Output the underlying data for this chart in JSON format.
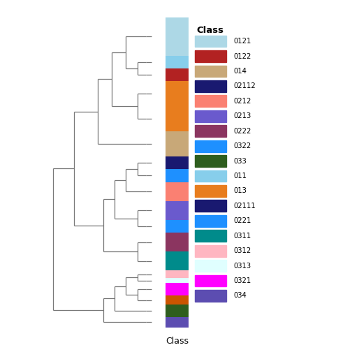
{
  "bar_segments": [
    {
      "color": "#ADD8E6",
      "size": 3.0
    },
    {
      "color": "#87CEEB",
      "size": 1.0
    },
    {
      "color": "#B22222",
      "size": 1.0
    },
    {
      "color": "#E87D1E",
      "size": 2.0
    },
    {
      "color": "#E87D1E",
      "size": 2.0
    },
    {
      "color": "#C8A878",
      "size": 2.0
    },
    {
      "color": "#191970",
      "size": 1.0
    },
    {
      "color": "#1E90FF",
      "size": 1.0
    },
    {
      "color": "#FA8072",
      "size": 1.5
    },
    {
      "color": "#6A5ACD",
      "size": 1.5
    },
    {
      "color": "#1E90FF",
      "size": 1.0
    },
    {
      "color": "#8B3560",
      "size": 1.5
    },
    {
      "color": "#008B8B",
      "size": 1.5
    },
    {
      "color": "#FFB6C1",
      "size": 0.6
    },
    {
      "color": "#E0FFFF",
      "size": 0.4
    },
    {
      "color": "#FF00FF",
      "size": 1.0
    },
    {
      "color": "#CC5500",
      "size": 0.7
    },
    {
      "color": "#2E5E1E",
      "size": 1.0
    },
    {
      "color": "#5C4DB1",
      "size": 0.8
    }
  ],
  "legend_classes": [
    "0121",
    "0122",
    "014",
    "02112",
    "0212",
    "0213",
    "0222",
    "0322",
    "033",
    "011",
    "013",
    "02111",
    "0221",
    "0311",
    "0312",
    "0313",
    "0321",
    "034"
  ],
  "legend_colors": [
    "#ADD8E6",
    "#B22222",
    "#C8A878",
    "#191970",
    "#FA8072",
    "#6A5ACD",
    "#8B3560",
    "#1E90FF",
    "#2E5E1E",
    "#87CEEB",
    "#E87D1E",
    "#191970",
    "#1E90FF",
    "#008B8B",
    "#FFB6C1",
    "#E0FFFF",
    "#FF00FF",
    "#5C4DB1"
  ],
  "dend_color": "#777777",
  "xlabel": "Class"
}
